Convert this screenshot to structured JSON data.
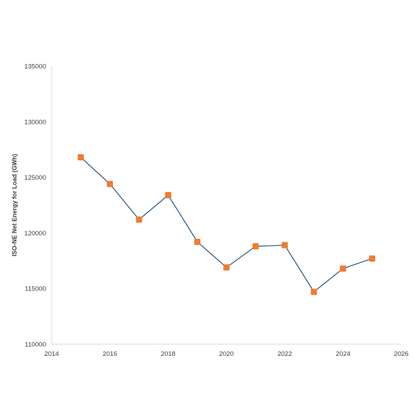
{
  "chart_data": {
    "type": "line",
    "title": "",
    "xlabel": "",
    "ylabel": "ISO-NE Net Energy for Load (GWh)",
    "xlim": [
      2014,
      2026
    ],
    "ylim": [
      110000,
      135000
    ],
    "x_ticks": [
      "2014",
      "2016",
      "2018",
      "2020",
      "2022",
      "2024",
      "2026"
    ],
    "y_ticks": [
      "110000",
      "115000",
      "120000",
      "125000",
      "130000",
      "135000"
    ],
    "grid": false,
    "legend": "none",
    "line_color": "#1f4e79",
    "marker_color": "#ed7d31",
    "series": [
      {
        "x": [
          2015,
          2016,
          2017,
          2018,
          2019,
          2020,
          2021,
          2022,
          2023,
          2024,
          2025
        ],
        "values": [
          126800,
          124400,
          121200,
          123400,
          119200,
          116900,
          118800,
          118900,
          114700,
          116800,
          117700
        ]
      }
    ]
  }
}
